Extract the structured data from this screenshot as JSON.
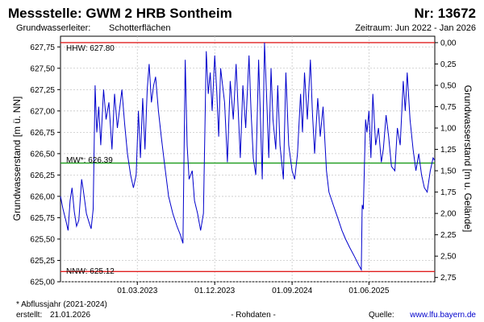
{
  "header": {
    "title": "Messstelle: GWM 2 HRB Sontheim",
    "number": "Nr: 13672",
    "aquifer_label": "Grundwasserleiter:",
    "aquifer_value": "Schotterflächen",
    "period": "Zeitraum: Jun 2022 - Jan 2026"
  },
  "footer": {
    "note": "* Abflussjahr (2021-2024)",
    "created_label": "erstellt:",
    "created_date": "21.01.2026",
    "raw": "- Rohdaten -",
    "source_label": "Quelle:",
    "source_url": "www.lfu.bayern.de"
  },
  "colors": {
    "series": "#0000cc",
    "hhw_line": "#e02020",
    "nnw_line": "#e02020",
    "mw_line": "#1a9a1a",
    "grid": "#c8c8c8",
    "source_link": "#0000cc"
  },
  "chart_data": {
    "type": "line",
    "xlabel": "",
    "ylabel": "Grundwasserstand [m ü. NN]",
    "y2label": "Grundwasserstand [m u. Gelände]",
    "x_range": [
      "2022-06-01",
      "2026-01-21"
    ],
    "ylim": [
      625.0,
      627.875
    ],
    "y_ticks": [
      "625,00",
      "625,25",
      "625,50",
      "625,75",
      "626,00",
      "626,25",
      "626,50",
      "626,75",
      "627,00",
      "627,25",
      "627,50",
      "627,75"
    ],
    "y_tick_values": [
      625.0,
      625.25,
      625.5,
      625.75,
      626.0,
      626.25,
      626.5,
      626.75,
      627.0,
      627.25,
      627.5,
      627.75
    ],
    "y2_ticks": [
      "0,00",
      "0,25",
      "0,50",
      "0,75",
      "1,00",
      "1,25",
      "1,50",
      "1,75",
      "2,00",
      "2,25",
      "2,50",
      "2,75"
    ],
    "y2_tick_values": [
      0.0,
      0.25,
      0.5,
      0.75,
      1.0,
      1.25,
      1.5,
      1.75,
      2.0,
      2.25,
      2.5,
      2.75
    ],
    "x_ticks": [
      {
        "label": "01.03.2023",
        "date": "2023-03-01"
      },
      {
        "label": "01.12.2023",
        "date": "2023-12-01"
      },
      {
        "label": "01.09.2024",
        "date": "2024-09-01"
      },
      {
        "label": "01.06.2025",
        "date": "2025-06-01"
      }
    ],
    "grid": true,
    "reference_lines": [
      {
        "key": "hhw",
        "label": "HHW: 627.80",
        "value": 627.8
      },
      {
        "key": "mw",
        "label": "MW*: 626.39",
        "value": 626.39
      },
      {
        "key": "nnw",
        "label": "NNW: 625.12",
        "value": 625.12
      }
    ],
    "series": [
      {
        "points": [
          [
            "2022-06-01",
            626.0
          ],
          [
            "2022-06-10",
            625.85
          ],
          [
            "2022-06-20",
            625.72
          ],
          [
            "2022-06-28",
            625.6
          ],
          [
            "2022-07-05",
            625.95
          ],
          [
            "2022-07-12",
            626.1
          ],
          [
            "2022-07-20",
            625.82
          ],
          [
            "2022-07-28",
            625.65
          ],
          [
            "2022-08-05",
            625.72
          ],
          [
            "2022-08-15",
            626.2
          ],
          [
            "2022-08-22",
            626.05
          ],
          [
            "2022-09-01",
            625.8
          ],
          [
            "2022-09-10",
            625.7
          ],
          [
            "2022-09-18",
            625.62
          ],
          [
            "2022-09-25",
            625.85
          ],
          [
            "2022-10-02",
            627.3
          ],
          [
            "2022-10-08",
            626.75
          ],
          [
            "2022-10-15",
            627.05
          ],
          [
            "2022-10-22",
            626.6
          ],
          [
            "2022-11-01",
            627.25
          ],
          [
            "2022-11-10",
            626.9
          ],
          [
            "2022-11-20",
            627.1
          ],
          [
            "2022-12-01",
            626.55
          ],
          [
            "2022-12-10",
            627.2
          ],
          [
            "2022-12-20",
            626.8
          ],
          [
            "2023-01-05",
            627.25
          ],
          [
            "2023-01-15",
            626.85
          ],
          [
            "2023-01-25",
            626.5
          ],
          [
            "2023-02-05",
            626.25
          ],
          [
            "2023-02-15",
            626.1
          ],
          [
            "2023-02-25",
            626.25
          ],
          [
            "2023-03-05",
            627.0
          ],
          [
            "2023-03-12",
            626.45
          ],
          [
            "2023-03-20",
            627.15
          ],
          [
            "2023-03-28",
            626.55
          ],
          [
            "2023-04-05",
            627.25
          ],
          [
            "2023-04-12",
            627.55
          ],
          [
            "2023-04-20",
            627.1
          ],
          [
            "2023-04-28",
            627.3
          ],
          [
            "2023-05-05",
            627.4
          ],
          [
            "2023-05-15",
            627.0
          ],
          [
            "2023-05-25",
            626.7
          ],
          [
            "2023-06-05",
            626.4
          ],
          [
            "2023-06-20",
            626.0
          ],
          [
            "2023-07-05",
            625.8
          ],
          [
            "2023-07-20",
            625.65
          ],
          [
            "2023-08-01",
            625.55
          ],
          [
            "2023-08-10",
            625.45
          ],
          [
            "2023-08-18",
            627.6
          ],
          [
            "2023-08-25",
            626.6
          ],
          [
            "2023-09-01",
            626.2
          ],
          [
            "2023-09-12",
            626.3
          ],
          [
            "2023-09-20",
            625.95
          ],
          [
            "2023-10-01",
            625.8
          ],
          [
            "2023-10-12",
            625.6
          ],
          [
            "2023-10-22",
            625.8
          ],
          [
            "2023-11-01",
            627.7
          ],
          [
            "2023-11-08",
            627.2
          ],
          [
            "2023-11-15",
            627.45
          ],
          [
            "2023-11-22",
            627.0
          ],
          [
            "2023-12-01",
            627.65
          ],
          [
            "2023-12-08",
            627.25
          ],
          [
            "2023-12-15",
            626.7
          ],
          [
            "2023-12-22",
            627.5
          ],
          [
            "2024-01-05",
            627.1
          ],
          [
            "2024-01-15",
            626.4
          ],
          [
            "2024-01-25",
            627.35
          ],
          [
            "2024-02-05",
            626.9
          ],
          [
            "2024-02-15",
            627.55
          ],
          [
            "2024-02-22",
            627.05
          ],
          [
            "2024-03-01",
            626.45
          ],
          [
            "2024-03-10",
            627.3
          ],
          [
            "2024-03-20",
            626.8
          ],
          [
            "2024-04-01",
            627.65
          ],
          [
            "2024-04-08",
            627.0
          ],
          [
            "2024-04-16",
            626.45
          ],
          [
            "2024-04-25",
            626.25
          ],
          [
            "2024-05-05",
            627.6
          ],
          [
            "2024-05-10",
            627.05
          ],
          [
            "2024-05-18",
            626.2
          ],
          [
            "2024-05-26",
            627.8
          ],
          [
            "2024-06-02",
            627.2
          ],
          [
            "2024-06-10",
            626.45
          ],
          [
            "2024-06-18",
            627.5
          ],
          [
            "2024-06-25",
            626.9
          ],
          [
            "2024-07-05",
            626.55
          ],
          [
            "2024-07-12",
            627.3
          ],
          [
            "2024-07-20",
            626.6
          ],
          [
            "2024-08-01",
            626.2
          ],
          [
            "2024-08-10",
            627.45
          ],
          [
            "2024-08-20",
            626.6
          ],
          [
            "2024-09-01",
            626.3
          ],
          [
            "2024-09-10",
            626.2
          ],
          [
            "2024-09-20",
            626.5
          ],
          [
            "2024-10-01",
            627.2
          ],
          [
            "2024-10-08",
            626.75
          ],
          [
            "2024-10-15",
            627.45
          ],
          [
            "2024-10-25",
            626.9
          ],
          [
            "2024-11-05",
            627.6
          ],
          [
            "2024-11-12",
            627.0
          ],
          [
            "2024-11-20",
            626.5
          ],
          [
            "2024-12-01",
            627.15
          ],
          [
            "2024-12-10",
            626.7
          ],
          [
            "2024-12-20",
            627.05
          ],
          [
            "2025-01-01",
            626.3
          ],
          [
            "2025-01-10",
            626.05
          ],
          [
            "2025-01-25",
            625.9
          ],
          [
            "2025-02-10",
            625.75
          ],
          [
            "2025-02-25",
            625.6
          ],
          [
            "2025-03-10",
            625.5
          ],
          [
            "2025-03-25",
            625.4
          ],
          [
            "2025-04-10",
            625.3
          ],
          [
            "2025-04-25",
            625.2
          ],
          [
            "2025-05-05",
            625.14
          ],
          [
            "2025-05-08",
            625.9
          ],
          [
            "2025-05-12",
            625.85
          ],
          [
            "2025-05-20",
            626.9
          ],
          [
            "2025-05-25",
            626.75
          ],
          [
            "2025-06-01",
            627.0
          ],
          [
            "2025-06-08",
            626.45
          ],
          [
            "2025-06-15",
            627.2
          ],
          [
            "2025-06-25",
            626.6
          ],
          [
            "2025-07-05",
            626.8
          ],
          [
            "2025-07-15",
            626.4
          ],
          [
            "2025-07-22",
            626.55
          ],
          [
            "2025-08-01",
            626.95
          ],
          [
            "2025-08-10",
            626.7
          ],
          [
            "2025-08-20",
            626.35
          ],
          [
            "2025-09-01",
            626.3
          ],
          [
            "2025-09-10",
            626.8
          ],
          [
            "2025-09-20",
            626.6
          ],
          [
            "2025-10-01",
            627.35
          ],
          [
            "2025-10-08",
            627.0
          ],
          [
            "2025-10-15",
            627.45
          ],
          [
            "2025-10-25",
            626.9
          ],
          [
            "2025-11-05",
            626.55
          ],
          [
            "2025-11-15",
            626.3
          ],
          [
            "2025-11-25",
            626.5
          ],
          [
            "2025-12-05",
            626.25
          ],
          [
            "2025-12-15",
            626.1
          ],
          [
            "2025-12-25",
            626.05
          ],
          [
            "2026-01-05",
            626.3
          ],
          [
            "2026-01-15",
            626.45
          ],
          [
            "2026-01-21",
            626.42
          ]
        ]
      }
    ]
  }
}
